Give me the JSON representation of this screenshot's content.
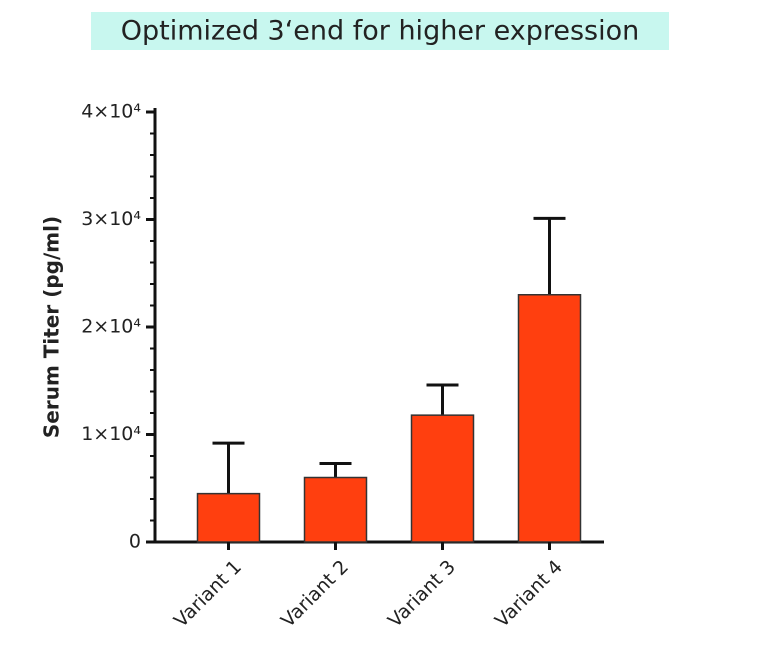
{
  "chart_data": {
    "type": "bar",
    "title": "Optimized 3‘end for higher expression",
    "y_label": "Serum Titer (pg/ml)",
    "categories": [
      "Variant 1",
      "Variant 2",
      "Variant 3",
      "Variant 4"
    ],
    "values": [
      4500,
      6000,
      11800,
      23000
    ],
    "errors": [
      4700,
      1300,
      2800,
      7100
    ],
    "color": "#ff3f0f",
    "ylim": [
      0,
      40000
    ],
    "yticks": [
      0,
      {
        "value": 10000,
        "label": "1×10⁴"
      },
      {
        "value": 20000,
        "label": "2×10⁴"
      },
      {
        "value": 30000,
        "label": "3×10⁴"
      },
      {
        "value": 40000,
        "label": "4×10⁴"
      }
    ],
    "yminor_ticks": [
      2000,
      4000,
      6000,
      8000,
      12000,
      14000,
      16000,
      18000,
      22000,
      24000,
      26000,
      28000,
      32000,
      34000,
      36000,
      38000
    ]
  }
}
